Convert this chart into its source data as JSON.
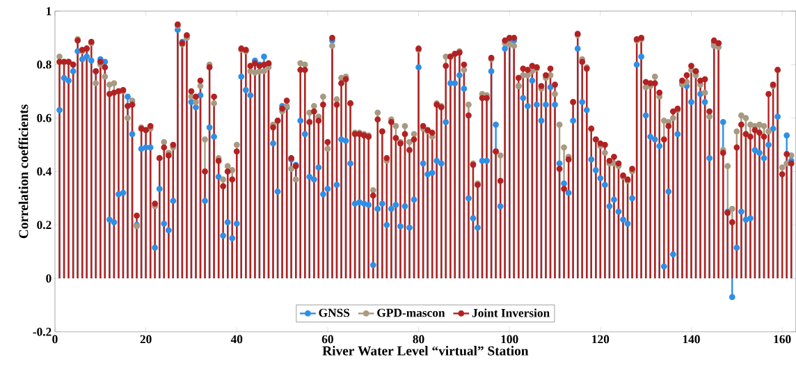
{
  "chart_data": {
    "type": "lollipop",
    "xlabel": "River Water Level “virtual” Station",
    "ylabel": "Correlation coefficients",
    "x": [
      1,
      2,
      3,
      4,
      5,
      6,
      7,
      8,
      9,
      10,
      11,
      12,
      13,
      14,
      15,
      16,
      17,
      18,
      19,
      20,
      21,
      22,
      23,
      24,
      25,
      26,
      27,
      28,
      29,
      30,
      31,
      32,
      33,
      34,
      35,
      36,
      37,
      38,
      39,
      40,
      41,
      42,
      43,
      44,
      45,
      46,
      47,
      48,
      49,
      50,
      51,
      52,
      53,
      54,
      55,
      56,
      57,
      58,
      59,
      60,
      61,
      62,
      63,
      64,
      65,
      66,
      67,
      68,
      69,
      70,
      71,
      72,
      73,
      74,
      75,
      76,
      77,
      78,
      79,
      80,
      81,
      82,
      83,
      84,
      85,
      86,
      87,
      88,
      89,
      90,
      91,
      92,
      93,
      94,
      95,
      96,
      97,
      98,
      99,
      100,
      101,
      102,
      103,
      104,
      105,
      106,
      107,
      108,
      109,
      110,
      111,
      112,
      113,
      114,
      115,
      116,
      117,
      118,
      119,
      120,
      121,
      122,
      123,
      124,
      125,
      126,
      127,
      128,
      129,
      130,
      131,
      132,
      133,
      134,
      135,
      136,
      137,
      138,
      139,
      140,
      141,
      142,
      143,
      144,
      145,
      146,
      147,
      148,
      149,
      150,
      151,
      152,
      153,
      154,
      155,
      156,
      157,
      158,
      159,
      160,
      161,
      162
    ],
    "xlim": [
      0,
      163
    ],
    "xticks": [
      0,
      20,
      40,
      60,
      80,
      100,
      120,
      140,
      160
    ],
    "ylim": [
      -0.2,
      1
    ],
    "yticks": [
      -0.2,
      0,
      0.2,
      0.4,
      0.6,
      0.8,
      1
    ],
    "marker": "circle",
    "legend": "bottom",
    "series": [
      {
        "name": "GNSS",
        "color": "#2f8fe6",
        "values": [
          0.63,
          0.75,
          0.74,
          0.775,
          0.85,
          0.82,
          0.83,
          0.815,
          0.775,
          0.82,
          0.81,
          0.22,
          0.21,
          0.315,
          0.32,
          0.68,
          0.54,
          0.2,
          0.485,
          0.49,
          0.49,
          0.115,
          0.335,
          0.205,
          0.18,
          0.29,
          0.93,
          0.885,
          0.905,
          0.66,
          0.64,
          0.685,
          0.29,
          0.565,
          0.53,
          0.38,
          0.16,
          0.21,
          0.15,
          0.205,
          0.755,
          0.705,
          0.685,
          0.815,
          0.8,
          0.83,
          0.8,
          0.505,
          0.325,
          0.645,
          0.64,
          0.445,
          0.425,
          0.59,
          0.54,
          0.38,
          0.37,
          0.415,
          0.315,
          0.335,
          0.89,
          0.35,
          0.52,
          0.515,
          0.43,
          0.28,
          0.285,
          0.28,
          0.275,
          0.05,
          0.26,
          0.28,
          0.2,
          0.26,
          0.275,
          0.195,
          0.27,
          0.19,
          0.295,
          0.79,
          0.43,
          0.39,
          0.395,
          0.44,
          0.43,
          0.585,
          0.73,
          0.73,
          0.76,
          0.71,
          0.3,
          0.225,
          0.19,
          0.44,
          0.44,
          0.775,
          0.575,
          0.27,
          0.86,
          0.895,
          0.89,
          0.72,
          0.675,
          0.645,
          0.74,
          0.65,
          0.59,
          0.65,
          0.715,
          0.65,
          0.43,
          0.355,
          0.32,
          0.59,
          0.86,
          0.66,
          0.63,
          0.445,
          0.405,
          0.375,
          0.35,
          0.27,
          0.295,
          0.25,
          0.22,
          0.205,
          0.3,
          0.8,
          0.83,
          0.61,
          0.53,
          0.52,
          0.495,
          0.045,
          0.325,
          0.09,
          0.54,
          0.73,
          0.72,
          0.66,
          0.775,
          0.69,
          0.66,
          0.45,
          0.88,
          0.88,
          0.585,
          0.25,
          -0.07,
          0.115,
          0.25,
          0.22,
          0.225,
          0.48,
          0.47,
          0.45,
          0.5,
          0.56,
          0.605,
          null,
          0.535,
          0.44
        ]
      },
      {
        "name": "GPD-mascon",
        "color": "#a89a82",
        "values": [
          0.83,
          0.81,
          0.81,
          0.8,
          0.895,
          0.85,
          0.86,
          0.88,
          0.73,
          0.8,
          0.755,
          0.725,
          0.73,
          0.7,
          0.7,
          0.6,
          0.665,
          0.195,
          0.565,
          0.555,
          0.56,
          0.27,
          0.45,
          0.51,
          0.47,
          0.49,
          0.945,
          0.875,
          0.9,
          0.68,
          0.66,
          0.72,
          0.52,
          0.8,
          0.655,
          0.45,
          0.37,
          0.42,
          0.405,
          0.5,
          0.855,
          0.85,
          0.775,
          0.77,
          0.775,
          0.775,
          0.79,
          0.575,
          0.59,
          0.625,
          0.645,
          0.41,
          0.37,
          0.805,
          0.8,
          0.62,
          0.645,
          0.605,
          0.68,
          0.485,
          0.87,
          0.67,
          0.75,
          0.755,
          0.655,
          0.545,
          0.545,
          0.54,
          0.535,
          0.33,
          0.62,
          0.55,
          0.44,
          0.595,
          0.57,
          0.51,
          0.57,
          0.51,
          0.54,
          0.855,
          0.56,
          0.55,
          0.53,
          0.655,
          0.645,
          0.83,
          0.83,
          0.84,
          0.85,
          0.78,
          0.65,
          0.43,
          0.355,
          0.69,
          0.685,
          0.82,
          0.475,
          0.46,
          0.88,
          0.875,
          0.87,
          0.72,
          0.76,
          0.76,
          0.775,
          0.785,
          0.71,
          0.75,
          0.76,
          0.69,
          0.575,
          0.49,
          0.455,
          0.66,
          0.91,
          0.82,
          0.79,
          0.56,
          0.52,
          0.495,
          0.47,
          0.43,
          0.43,
          0.42,
          0.38,
          0.365,
          0.4,
          0.89,
          0.895,
          0.715,
          0.72,
          0.755,
          0.68,
          0.59,
          0.585,
          0.6,
          0.63,
          0.725,
          0.735,
          0.78,
          0.76,
          0.725,
          0.695,
          0.605,
          0.87,
          0.865,
          0.48,
          0.42,
          0.26,
          0.55,
          0.61,
          0.6,
          0.575,
          0.57,
          0.575,
          0.57,
          0.55,
          0.72,
          0.78,
          0.415,
          0.43,
          0.46
        ]
      },
      {
        "name": "Joint Inversion",
        "color": "#b22222",
        "values": [
          0.81,
          0.81,
          0.81,
          0.8,
          0.89,
          0.855,
          0.86,
          0.885,
          0.775,
          0.81,
          0.79,
          0.69,
          0.695,
          0.7,
          0.705,
          0.645,
          0.65,
          0.235,
          0.56,
          0.555,
          0.57,
          0.28,
          0.45,
          0.49,
          0.46,
          0.5,
          0.95,
          0.88,
          0.91,
          0.7,
          0.68,
          0.74,
          0.4,
          0.79,
          0.68,
          0.44,
          0.345,
          0.4,
          0.37,
          0.475,
          0.86,
          0.855,
          0.795,
          0.805,
          0.795,
          0.8,
          0.805,
          0.565,
          0.59,
          0.635,
          0.665,
          0.45,
          0.42,
          0.78,
          0.78,
          0.585,
          0.625,
          0.59,
          0.65,
          0.51,
          0.9,
          0.65,
          0.73,
          0.745,
          0.655,
          0.54,
          0.54,
          0.535,
          0.53,
          0.31,
          0.595,
          0.55,
          0.45,
          0.585,
          0.525,
          0.505,
          0.54,
          0.48,
          0.52,
          0.86,
          0.57,
          0.555,
          0.545,
          0.65,
          0.64,
          0.795,
          0.83,
          0.84,
          0.845,
          0.8,
          0.61,
          0.425,
          0.35,
          0.675,
          0.675,
          0.825,
          0.475,
          0.365,
          0.89,
          0.9,
          0.9,
          0.75,
          0.785,
          0.78,
          0.795,
          0.79,
          0.72,
          0.76,
          0.785,
          0.725,
          0.41,
          0.335,
          0.445,
          0.66,
          0.915,
          0.81,
          0.785,
          0.56,
          0.52,
          0.505,
          0.5,
          0.44,
          0.455,
          0.43,
          0.385,
          0.37,
          0.41,
          0.895,
          0.9,
          0.735,
          0.73,
          0.73,
          0.695,
          0.52,
          0.57,
          0.625,
          0.635,
          0.74,
          0.76,
          0.795,
          0.775,
          0.74,
          0.745,
          0.625,
          0.89,
          0.88,
          0.47,
          0.245,
          0.21,
          0.49,
          0.575,
          0.54,
          0.53,
          0.555,
          0.545,
          0.53,
          0.69,
          0.725,
          0.78,
          0.39,
          0.465,
          0.43
        ]
      }
    ]
  }
}
